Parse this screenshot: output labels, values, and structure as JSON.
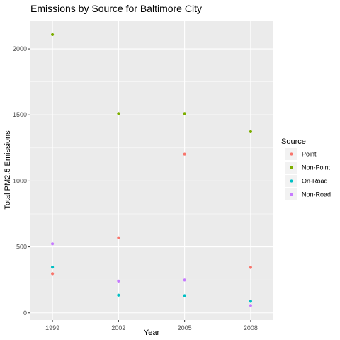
{
  "chart_data": {
    "type": "scatter",
    "title": "Emissions by Source for Baltimore City",
    "xlabel": "Year",
    "ylabel": "Total PM2.5 Emissions",
    "x": [
      1999,
      2002,
      2005,
      2008
    ],
    "x_tick_labels": [
      "1999",
      "2002",
      "2005",
      "2008"
    ],
    "y_ticks": [
      0,
      500,
      1000,
      1500,
      2000
    ],
    "y_tick_labels": [
      "0",
      "500",
      "1000",
      "1500",
      "2000"
    ],
    "ylim": [
      -55,
      2215
    ],
    "xlim": [
      1998,
      2009
    ],
    "grid": true,
    "legend": {
      "title": "Source",
      "position": "right"
    },
    "series": [
      {
        "name": "Point",
        "color": "#F8766D",
        "values": [
          297,
          569,
          1203,
          345
        ]
      },
      {
        "name": "Non-Point",
        "color": "#7CAE00",
        "values": [
          2108,
          1510,
          1510,
          1373
        ]
      },
      {
        "name": "On-Road",
        "color": "#00BFC4",
        "values": [
          347,
          134,
          130,
          88
        ]
      },
      {
        "name": "Non-Road",
        "color": "#C77CFF",
        "values": [
          523,
          241,
          249,
          56
        ]
      }
    ]
  }
}
